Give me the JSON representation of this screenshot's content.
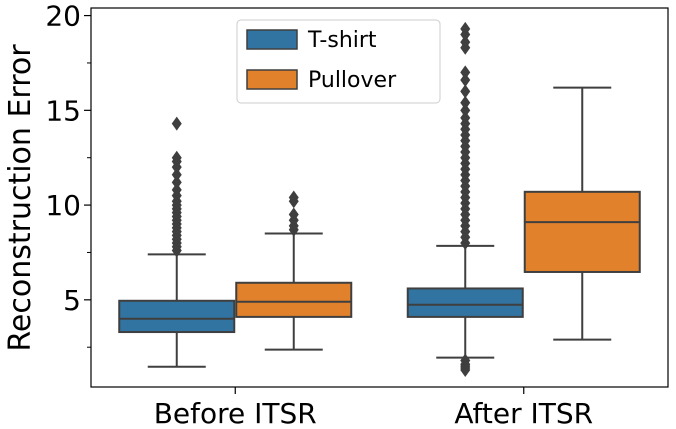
{
  "chart_data": {
    "type": "box",
    "title": "",
    "xlabel": "",
    "ylabel": "Reconstruction Error",
    "categories": [
      "Before ITSR",
      "After ITSR"
    ],
    "ylim": [
      0.4,
      20.4
    ],
    "yticks": [
      5,
      10,
      15,
      20
    ],
    "ytick_labels": [
      "5",
      "10",
      "15",
      "20"
    ],
    "y_minor_ticks": [
      2.5,
      7.5,
      12.5,
      17.5
    ],
    "grid": false,
    "legend_position": "top-center",
    "series": [
      {
        "name": "T-shirt",
        "color": "#3274a1",
        "boxes": [
          {
            "whisker_low": 1.47,
            "q1": 3.3,
            "median": 4.0,
            "q3": 4.95,
            "whisker_high": 7.4,
            "outliers": [
              7.6,
              7.8,
              8.0,
              8.2,
              8.4,
              8.6,
              8.8,
              9.0,
              9.2,
              9.4,
              9.6,
              9.8,
              10.0,
              10.2,
              10.5,
              10.8,
              11.2,
              11.6,
              12.0,
              12.3,
              12.5,
              14.3
            ]
          },
          {
            "whisker_low": 1.95,
            "q1": 4.1,
            "median": 4.74,
            "q3": 5.6,
            "whisker_high": 7.85,
            "outliers": [
              1.8,
              1.6,
              1.5,
              1.4,
              1.3,
              8.0,
              8.3,
              8.6,
              8.9,
              9.2,
              9.5,
              9.8,
              10.1,
              10.4,
              10.7,
              11.0,
              11.3,
              11.6,
              11.9,
              12.2,
              12.5,
              12.8,
              13.1,
              13.4,
              13.7,
              14.0,
              14.3,
              14.6,
              15.0,
              15.4,
              16.0,
              16.6,
              17.0,
              18.3,
              18.6,
              19.0,
              19.3
            ]
          }
        ]
      },
      {
        "name": "Pullover",
        "color": "#e1812c",
        "boxes": [
          {
            "whisker_low": 2.37,
            "q1": 4.1,
            "median": 4.9,
            "q3": 5.9,
            "whisker_high": 8.5,
            "outliers": [
              8.7,
              8.9,
              9.2,
              9.5,
              10.2,
              10.4
            ]
          },
          {
            "whisker_low": 2.9,
            "q1": 6.47,
            "median": 9.1,
            "q3": 10.7,
            "whisker_high": 16.2,
            "outliers": []
          }
        ]
      }
    ]
  }
}
